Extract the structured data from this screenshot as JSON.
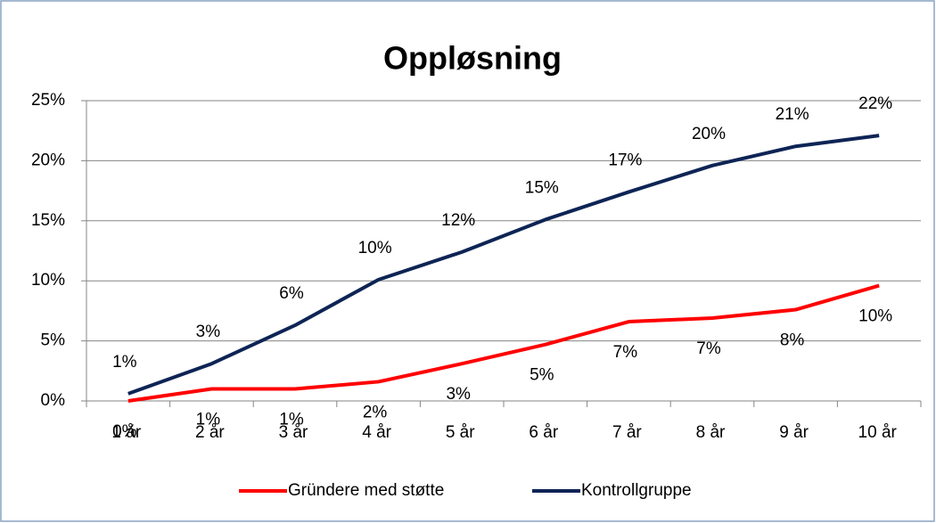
{
  "chart_data": {
    "type": "line",
    "title": "Oppløsning",
    "categories": [
      "1 år",
      "2 år",
      "3 år",
      "4 år",
      "5 år",
      "6 år",
      "7 år",
      "8 år",
      "9 år",
      "10 år"
    ],
    "series": [
      {
        "name": "Gründere med støtte",
        "color": "#ff0000",
        "values": [
          0,
          1.0,
          1.0,
          1.6,
          3.1,
          4.7,
          6.6,
          6.9,
          7.6,
          9.6
        ],
        "value_labels": [
          "0%",
          "1%",
          "1%",
          "2%",
          "3%",
          "5%",
          "7%",
          "7%",
          "8%",
          "10%"
        ]
      },
      {
        "name": "Kontrollgruppe",
        "color": "#0d2455",
        "values": [
          0.6,
          3.1,
          6.3,
          10.1,
          12.4,
          15.1,
          17.4,
          19.6,
          21.2,
          22.1
        ],
        "value_labels": [
          "1%",
          "3%",
          "6%",
          "10%",
          "12%",
          "15%",
          "17%",
          "20%",
          "21%",
          "22%"
        ]
      }
    ],
    "ylim": [
      0,
      25
    ],
    "yticks": [
      {
        "value": 0,
        "label": "0%"
      },
      {
        "value": 5,
        "label": "5%"
      },
      {
        "value": 10,
        "label": "10%"
      },
      {
        "value": 15,
        "label": "15%"
      },
      {
        "value": 20,
        "label": "20%"
      },
      {
        "value": 25,
        "label": "25%"
      }
    ],
    "grid": true,
    "legend": "bottom"
  }
}
